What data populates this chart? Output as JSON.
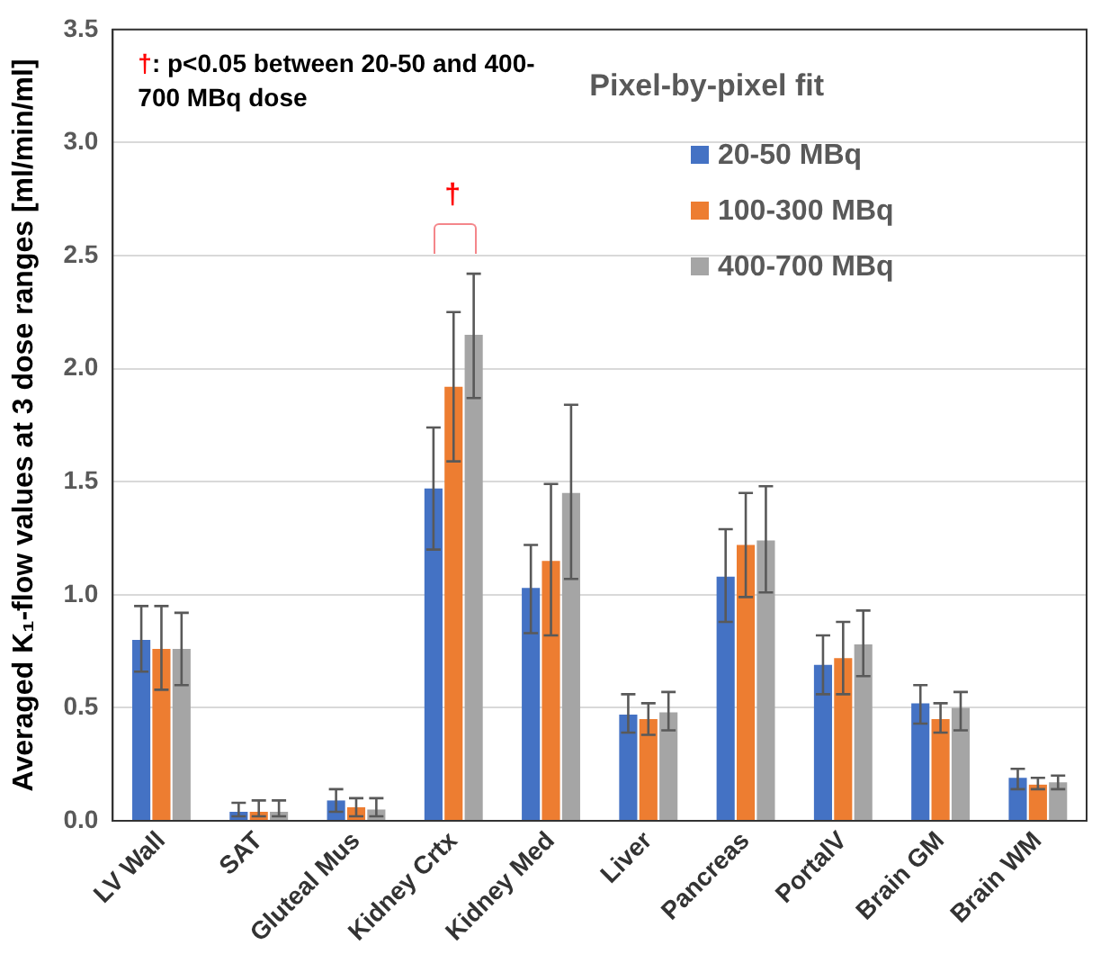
{
  "chart_data": {
    "type": "bar",
    "ylabel": "Averaged K₁-flow values at 3 dose ranges [ml/min/ml]",
    "categories": [
      "LV Wall",
      "SAT",
      "Gluteal Mus",
      "Kidney Crtx",
      "Kidney Med",
      "Liver",
      "Pancreas",
      "PortalV",
      "Brain GM",
      "Brain WM"
    ],
    "series": [
      {
        "name": "20-50 MBq",
        "color": "#4472c4",
        "values": [
          0.8,
          0.04,
          0.09,
          1.47,
          1.03,
          0.47,
          1.08,
          0.69,
          0.52,
          0.19
        ],
        "errors": [
          [
            0.66,
            0.95
          ],
          [
            0.02,
            0.08
          ],
          [
            0.04,
            0.14
          ],
          [
            1.2,
            1.74
          ],
          [
            0.83,
            1.22
          ],
          [
            0.39,
            0.56
          ],
          [
            0.88,
            1.29
          ],
          [
            0.56,
            0.82
          ],
          [
            0.43,
            0.6
          ],
          [
            0.14,
            0.23
          ]
        ]
      },
      {
        "name": "100-300 MBq",
        "color": "#ed7d31",
        "values": [
          0.76,
          0.04,
          0.06,
          1.92,
          1.15,
          0.45,
          1.22,
          0.72,
          0.45,
          0.16
        ],
        "errors": [
          [
            0.58,
            0.95
          ],
          [
            0.02,
            0.09
          ],
          [
            0.02,
            0.1
          ],
          [
            1.59,
            2.25
          ],
          [
            0.82,
            1.49
          ],
          [
            0.38,
            0.52
          ],
          [
            0.99,
            1.45
          ],
          [
            0.56,
            0.88
          ],
          [
            0.39,
            0.52
          ],
          [
            0.14,
            0.19
          ]
        ]
      },
      {
        "name": "400-700 MBq",
        "color": "#a5a5a5",
        "values": [
          0.76,
          0.04,
          0.05,
          2.15,
          1.45,
          0.48,
          1.24,
          0.78,
          0.5,
          0.17
        ],
        "errors": [
          [
            0.6,
            0.92
          ],
          [
            0.02,
            0.09
          ],
          [
            0.02,
            0.1
          ],
          [
            1.87,
            2.42
          ],
          [
            1.07,
            1.84
          ],
          [
            0.4,
            0.57
          ],
          [
            1.01,
            1.48
          ],
          [
            0.64,
            0.93
          ],
          [
            0.4,
            0.57
          ],
          [
            0.14,
            0.2
          ]
        ]
      }
    ],
    "ylim": [
      0,
      3.5
    ],
    "yticks": [
      {
        "value": 0,
        "label": "0.0"
      },
      {
        "value": 0.5,
        "label": "0.5"
      },
      {
        "value": 1,
        "label": "1.0"
      },
      {
        "value": 1.5,
        "label": "1.5"
      },
      {
        "value": 2,
        "label": "2.0"
      },
      {
        "value": 2.5,
        "label": "2.5"
      },
      {
        "value": 3,
        "label": "3.0"
      },
      {
        "value": 3.5,
        "label": "3.5"
      }
    ],
    "grid": "y",
    "legend": "top right",
    "annotations": [
      "†: p<0.05 between 20-50 and 400-700 MBq dose",
      "Pixel-by-pixel fit",
      "†"
    ]
  }
}
